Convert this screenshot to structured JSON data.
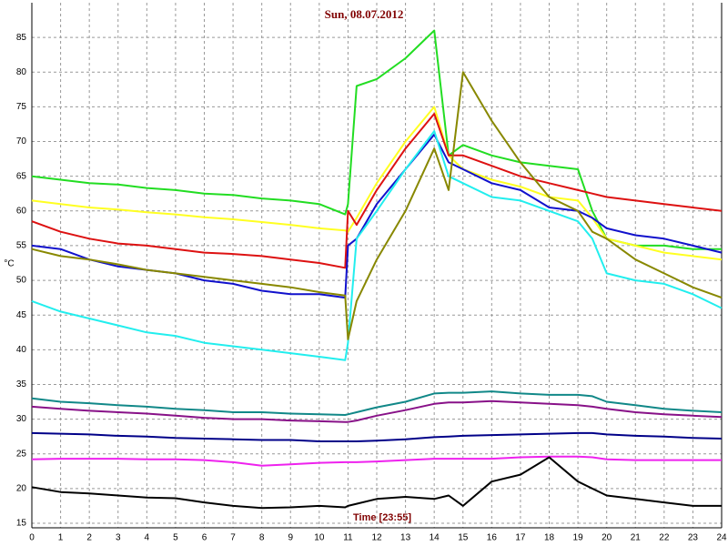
{
  "chart_data": {
    "type": "line",
    "title": "Sun, 08.07.2012",
    "x_label": "Time [23:55]",
    "y_label": "°C",
    "x": [
      0,
      1,
      2,
      3,
      4,
      5,
      6,
      7,
      8,
      9,
      10,
      10.9,
      11,
      11.3,
      12,
      13,
      14,
      14.5,
      15,
      16,
      17,
      18,
      19,
      19.5,
      20,
      21,
      22,
      23,
      24
    ],
    "xlim": [
      0,
      24
    ],
    "xticks": [
      0,
      1,
      2,
      3,
      4,
      5,
      6,
      7,
      8,
      9,
      10,
      11,
      12,
      13,
      14,
      15,
      16,
      17,
      18,
      19,
      20,
      21,
      22,
      23,
      24
    ],
    "ylim": [
      15,
      90
    ],
    "yticks": [
      15,
      20,
      25,
      30,
      35,
      40,
      45,
      50,
      55,
      60,
      65,
      70,
      75,
      80,
      85
    ],
    "grid": true,
    "series": [
      {
        "color": "#22dd22",
        "values": [
          65,
          64.5,
          64,
          63.8,
          63.3,
          63,
          62.5,
          62.3,
          61.8,
          61.5,
          61,
          59.5,
          61,
          78,
          79,
          82,
          86,
          68,
          69.5,
          68,
          67,
          66.5,
          66,
          60,
          56,
          55,
          55,
          54.5,
          54.5
        ]
      },
      {
        "color": "#ffff22",
        "values": [
          61.5,
          61,
          60.5,
          60.2,
          59.8,
          59.5,
          59.1,
          58.8,
          58.4,
          58,
          57.5,
          57.2,
          57,
          59,
          64,
          70,
          75,
          68,
          66,
          64.5,
          63.5,
          62,
          61.5,
          59,
          56,
          55,
          54,
          53.5,
          53
        ]
      },
      {
        "color": "#dd1111",
        "values": [
          58.5,
          57,
          56,
          55.3,
          55,
          54.5,
          54,
          53.8,
          53.5,
          53,
          52.5,
          51.8,
          60,
          58,
          63,
          69,
          74,
          68,
          68,
          66.5,
          65,
          64,
          63,
          62.5,
          62,
          61.5,
          61,
          60.5,
          60
        ]
      },
      {
        "color": "#1111cc",
        "values": [
          55,
          54.5,
          53,
          52,
          51.5,
          51,
          50,
          49.5,
          48.5,
          48,
          48,
          47.5,
          55,
          56,
          61,
          66,
          71,
          67,
          66,
          64,
          63,
          60.5,
          60,
          59,
          57.5,
          56.5,
          56,
          55,
          54
        ]
      },
      {
        "color": "#22eeee",
        "values": [
          47,
          45.5,
          44.5,
          43.5,
          42.5,
          42,
          41,
          40.5,
          40,
          39.5,
          39,
          38.5,
          41,
          56,
          60,
          66,
          71.5,
          65,
          64,
          62,
          61.5,
          60,
          58.5,
          56,
          51,
          50,
          49.5,
          48,
          46
        ]
      },
      {
        "color": "#888800",
        "values": [
          54.5,
          53.5,
          53,
          52.3,
          51.5,
          51,
          50.5,
          50,
          49.5,
          49,
          48.3,
          47.8,
          41.5,
          47,
          53,
          60,
          69,
          63,
          80,
          73,
          67,
          62,
          60,
          57,
          56,
          53,
          51,
          49,
          47.5
        ]
      },
      {
        "color": "#118888",
        "values": [
          33,
          32.5,
          32.3,
          32,
          31.8,
          31.5,
          31.3,
          31,
          31,
          30.8,
          30.7,
          30.6,
          30.7,
          31,
          31.7,
          32.5,
          33.7,
          33.8,
          33.8,
          34,
          33.7,
          33.5,
          33.5,
          33.3,
          32.5,
          32,
          31.5,
          31.2,
          31
        ]
      },
      {
        "color": "#881188",
        "values": [
          31.8,
          31.5,
          31.2,
          31,
          30.8,
          30.5,
          30.2,
          30,
          30,
          29.8,
          29.7,
          29.6,
          29.6,
          29.8,
          30.5,
          31.3,
          32.2,
          32.4,
          32.4,
          32.6,
          32.4,
          32.2,
          32,
          31.8,
          31.5,
          31,
          30.7,
          30.5,
          30.3
        ]
      },
      {
        "color": "#000088",
        "values": [
          28,
          27.9,
          27.8,
          27.6,
          27.5,
          27.3,
          27.2,
          27.1,
          27,
          27,
          26.8,
          26.8,
          26.8,
          26.8,
          26.9,
          27.1,
          27.4,
          27.5,
          27.6,
          27.7,
          27.8,
          27.9,
          28,
          28,
          27.8,
          27.6,
          27.5,
          27.3,
          27.2
        ]
      },
      {
        "color": "#ee22ee",
        "values": [
          24.2,
          24.3,
          24.3,
          24.3,
          24.2,
          24.2,
          24.1,
          23.8,
          23.3,
          23.5,
          23.7,
          23.8,
          23.8,
          23.8,
          23.9,
          24.1,
          24.3,
          24.3,
          24.3,
          24.3,
          24.5,
          24.6,
          24.6,
          24.5,
          24.2,
          24.1,
          24.1,
          24.1,
          24.1
        ]
      },
      {
        "color": "#000000",
        "values": [
          20.2,
          19.5,
          19.3,
          19,
          18.7,
          18.6,
          18,
          17.5,
          17.2,
          17.3,
          17.5,
          17.3,
          17.5,
          17.8,
          18.5,
          18.8,
          18.5,
          19,
          17.5,
          21,
          22,
          24.5,
          21,
          20,
          19,
          18.5,
          18,
          17.5,
          17.5
        ]
      }
    ]
  }
}
